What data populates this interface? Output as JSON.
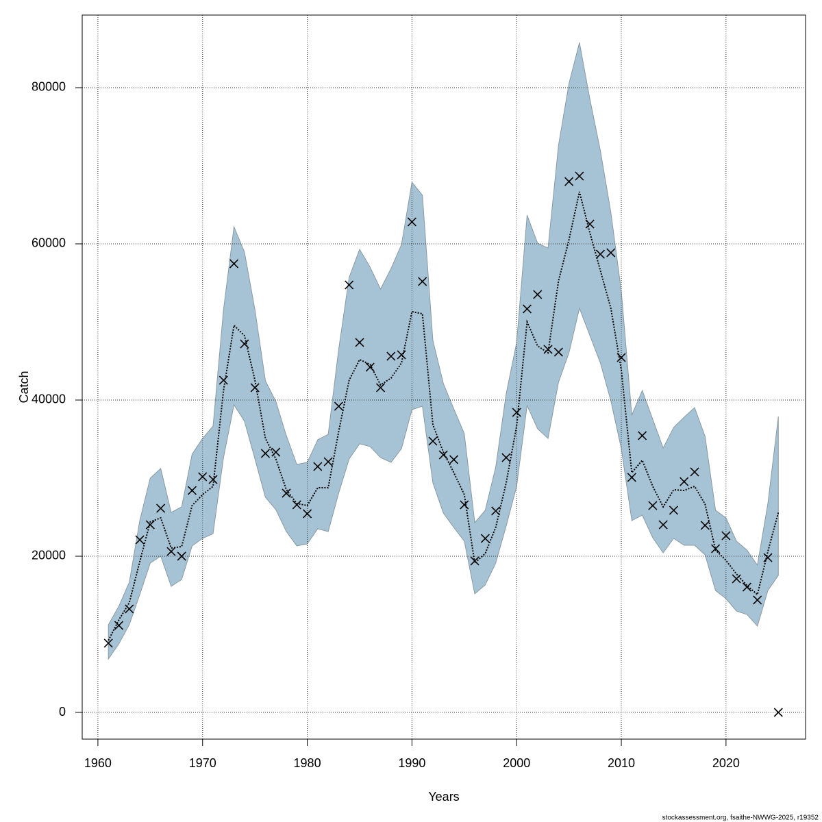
{
  "chart_data": {
    "type": "band-line",
    "x_label": "Years",
    "y_label": "Catch",
    "footer": "stockassessment.org, fsaithe-NWWG-2025, r19352",
    "x": [
      1961,
      1962,
      1963,
      1964,
      1965,
      1966,
      1967,
      1968,
      1969,
      1970,
      1971,
      1972,
      1973,
      1974,
      1975,
      1976,
      1977,
      1978,
      1979,
      1980,
      1981,
      1982,
      1983,
      1984,
      1985,
      1986,
      1987,
      1988,
      1989,
      1990,
      1991,
      1992,
      1993,
      1994,
      1995,
      1996,
      1997,
      1998,
      1999,
      2000,
      2001,
      2002,
      2003,
      2004,
      2005,
      2006,
      2007,
      2008,
      2009,
      2010,
      2011,
      2012,
      2013,
      2014,
      2015,
      2016,
      2017,
      2018,
      2019,
      2020,
      2021,
      2022,
      2023,
      2024,
      2025
    ],
    "observed": [
      8860,
      11140,
      13250,
      22100,
      24030,
      26140,
      20610,
      20000,
      28420,
      30180,
      29820,
      42540,
      57460,
      47190,
      41580,
      33160,
      33330,
      28070,
      26580,
      25440,
      31490,
      32100,
      39210,
      54740,
      47370,
      44210,
      41580,
      45610,
      45790,
      62810,
      55180,
      34740,
      32980,
      32370,
      26580,
      19390,
      22280,
      25790,
      32630,
      38420,
      51670,
      53510,
      46490,
      46140,
      67980,
      68680,
      62540,
      58680,
      58860,
      45440,
      30090,
      35440,
      26490,
      24030,
      25880,
      29560,
      30790,
      23950,
      20960,
      22630,
      17110,
      16050,
      14390,
      19820,
      0
    ],
    "estimate": [
      9210,
      11840,
      14040,
      19300,
      24390,
      24910,
      21050,
      21230,
      26490,
      27890,
      28950,
      41230,
      49560,
      48250,
      42540,
      35090,
      32460,
      28510,
      26750,
      26490,
      28770,
      28770,
      35960,
      42540,
      45180,
      44560,
      41930,
      42810,
      44740,
      51320,
      51050,
      36840,
      33330,
      30700,
      27890,
      19120,
      20350,
      23680,
      29390,
      36670,
      50000,
      46930,
      46050,
      55260,
      60530,
      66670,
      61400,
      56580,
      51750,
      43860,
      30700,
      32280,
      28950,
      26320,
      28510,
      28420,
      28950,
      26670,
      20790,
      19470,
      17720,
      16230,
      15090,
      20610,
      25610
    ],
    "upper": [
      11230,
      13600,
      16670,
      24560,
      30000,
      31230,
      25610,
      26320,
      33070,
      35090,
      36670,
      51580,
      62190,
      58950,
      51580,
      42460,
      39820,
      35440,
      31750,
      32020,
      34910,
      35610,
      46490,
      55700,
      59300,
      57020,
      54210,
      56840,
      59910,
      67890,
      66230,
      47630,
      42110,
      38860,
      35700,
      24300,
      25880,
      31400,
      40790,
      47370,
      63680,
      60090,
      59470,
      72630,
      80530,
      85790,
      78510,
      71930,
      64040,
      53950,
      38070,
      41230,
      37540,
      33860,
      36490,
      37810,
      39040,
      35350,
      25880,
      24910,
      21930,
      20790,
      18860,
      26750,
      37890
    ],
    "lower": [
      6840,
      8770,
      11230,
      15090,
      19120,
      20000,
      16140,
      17020,
      21320,
      22280,
      22890,
      32630,
      39390,
      37280,
      32460,
      27540,
      25960,
      23160,
      21320,
      21580,
      23510,
      23160,
      28070,
      32460,
      34390,
      34040,
      32630,
      32020,
      33770,
      38770,
      39210,
      29390,
      25530,
      23680,
      21930,
      15180,
      16320,
      19120,
      23860,
      28950,
      39300,
      36320,
      35090,
      42280,
      46050,
      51750,
      48250,
      44740,
      39910,
      33770,
      24560,
      25260,
      22370,
      20440,
      22280,
      21400,
      21400,
      20180,
      15610,
      14560,
      12980,
      12540,
      11050,
      15610,
      17540
    ],
    "band_color": "#a5c3d4",
    "band_stroke": "#8a9aa3",
    "line_color": "#000000",
    "marker_color": "#000000",
    "xlim": [
      1958.5,
      2027.6
    ],
    "ylim": [
      -3421,
      89298
    ],
    "xticks": [
      1960,
      1970,
      1980,
      1990,
      2000,
      2010,
      2020
    ],
    "yticks": [
      0,
      20000,
      40000,
      60000,
      80000
    ],
    "grid": true
  }
}
